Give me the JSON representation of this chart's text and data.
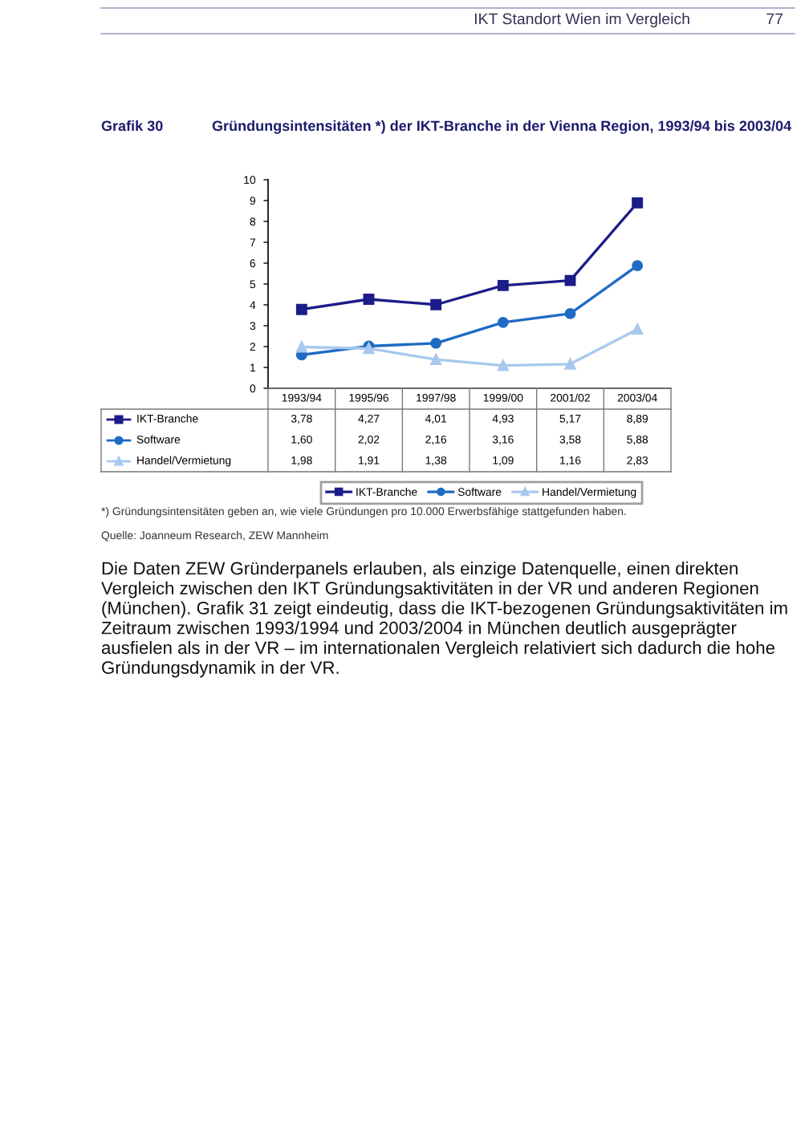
{
  "chart_data": {
    "type": "line",
    "title": "Gründungsintensitäten *) der IKT-Branche in der Vienna Region, 1993/94 bis 2003/04",
    "categories": [
      "1993/94",
      "1995/96",
      "1997/98",
      "1999/00",
      "2001/02",
      "2003/04"
    ],
    "series": [
      {
        "name": "IKT-Branche",
        "color": "#1c1c8a",
        "marker": "square",
        "values": [
          3.78,
          4.27,
          4.01,
          4.93,
          5.17,
          8.89
        ],
        "value_labels": [
          "3,78",
          "4,27",
          "4,01",
          "4,93",
          "5,17",
          "8,89"
        ]
      },
      {
        "name": "Software",
        "color": "#1f6bc4",
        "marker": "circle",
        "values": [
          1.6,
          2.02,
          2.16,
          3.16,
          3.58,
          5.88
        ],
        "value_labels": [
          "1,60",
          "2,02",
          "2,16",
          "3,16",
          "3,58",
          "5,88"
        ]
      },
      {
        "name": "Handel/Vermietung",
        "color": "#a8c8ee",
        "marker": "triangle",
        "values": [
          1.98,
          1.91,
          1.38,
          1.09,
          1.16,
          2.83
        ],
        "value_labels": [
          "1,98",
          "1,91",
          "1,38",
          "1,09",
          "1,16",
          "2,83"
        ]
      }
    ],
    "ylim": [
      0,
      10
    ],
    "yticks": [
      0,
      1,
      2,
      3,
      4,
      5,
      6,
      7,
      8,
      9,
      10
    ],
    "grid": false,
    "legend": "bottom",
    "line_style": "solid",
    "annotations": [
      "IKT Standort Wien im Vergleich",
      "77",
      "Grafik 30",
      "*) Gründungsintensitäten geben an, wie viele Gründungen pro 10.000 Erwerbsfähige stattgefunden haben.",
      "Quelle: Joanneum Research, ZEW Mannheim",
      "Die Daten ZEW Gründerpanels erlauben, als einzige Datenquelle, einen direkten Vergleich zwischen den IKT Gründungsaktivitäten in der VR und anderen Regionen (München). Grafik 31 zeigt eindeutig, dass die IKT-bezogenen Gründungsaktivitäten im Zeitraum zwischen 1993/1994 und 2003/2004 in München deutlich ausgeprägter ausfielen als in der VR – im internationalen Vergleich relativiert sich dadurch die hohe Gründungsdynamik in der VR."
    ]
  }
}
